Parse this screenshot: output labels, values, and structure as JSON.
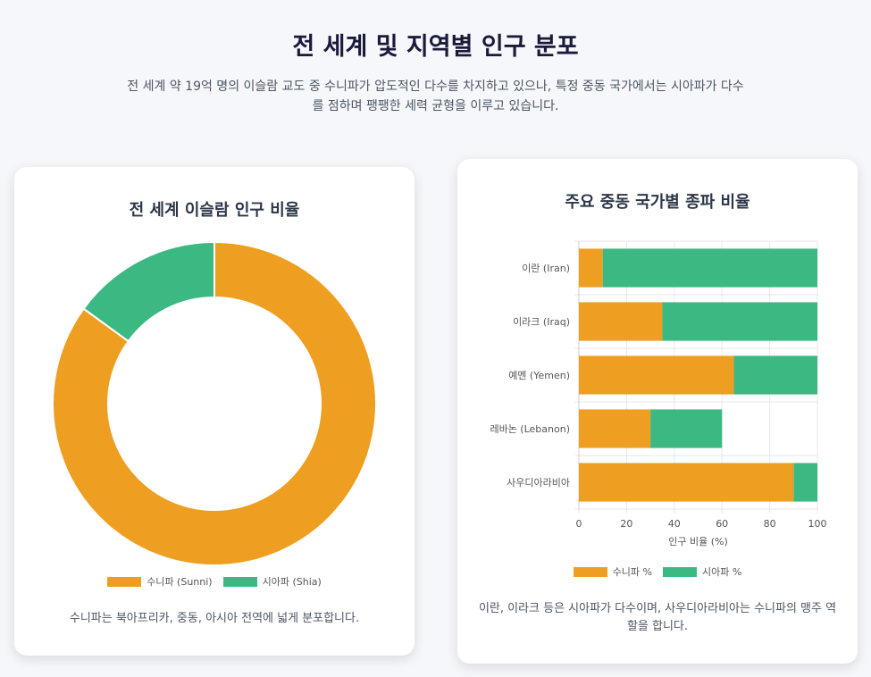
{
  "header": {
    "title": "전 세계 및 지역별 인구 분포",
    "subtitle": "전 세계 약 19억 명의 이슬람 교도 중 수니파가 압도적인 다수를 차지하고 있으나, 특정 중동 국가에서는 시아파가 다수를 점하며 팽팽한 세력 균형을 이루고 있습니다."
  },
  "colors": {
    "sunni": "#ee9f22",
    "shia": "#3cb982"
  },
  "left_card": {
    "title": "전 세계 이슬람 인구 비율",
    "note": "수니파는 북아프리카, 중동, 아시아 전역에 넓게 분포합니다.",
    "legend": [
      "수니파 (Sunni)",
      "시아파 (Shia)"
    ]
  },
  "right_card": {
    "title": "주요 중동 국가별 종파 비율",
    "note": "이란, 이라크 등은 시아파가 다수이며, 사우디아라비아는 수니파의 맹주 역할을 합니다.",
    "legend": [
      "수니파 %",
      "시아파 %"
    ]
  },
  "chart_data": [
    {
      "type": "pie",
      "title": "전 세계 이슬람 인구 비율",
      "categories": [
        "수니파 (Sunni)",
        "시아파 (Shia)"
      ],
      "values": [
        85,
        15
      ],
      "donut": true,
      "legend_position": "bottom"
    },
    {
      "type": "bar",
      "orientation": "horizontal",
      "stacked": true,
      "title": "주요 중동 국가별 종파 비율",
      "categories": [
        "이란 (Iran)",
        "이라크 (Iraq)",
        "예멘 (Yemen)",
        "레바논 (Lebanon)",
        "사우디아라비아"
      ],
      "series": [
        {
          "name": "수니파 %",
          "values": [
            10,
            35,
            65,
            30,
            90
          ]
        },
        {
          "name": "시아파 %",
          "values": [
            90,
            65,
            35,
            30,
            10
          ]
        }
      ],
      "xlabel": "인구 비율 (%)",
      "xlim": [
        0,
        100
      ],
      "xticks": [
        0,
        20,
        40,
        60,
        80,
        100
      ],
      "grid": true,
      "legend_position": "bottom"
    }
  ]
}
